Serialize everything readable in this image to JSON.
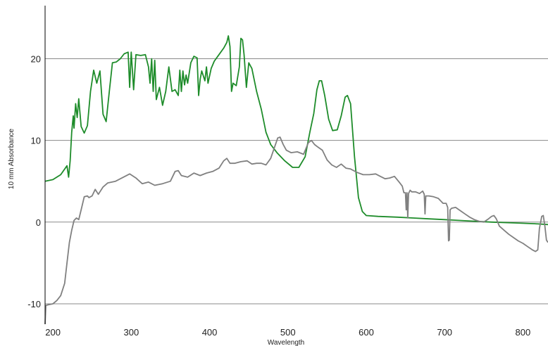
{
  "chart_data": {
    "type": "line",
    "title": "",
    "xlabel": "Wavelength",
    "ylabel": "10 mm Absorbance",
    "xlim": [
      190,
      832
    ],
    "ylim": [
      -12.5,
      26.5
    ],
    "xticks": [
      200,
      300,
      400,
      500,
      600,
      700,
      800
    ],
    "yticks": [
      -10,
      0,
      10,
      20
    ],
    "grid": "horizontal",
    "legend": "none",
    "series": [
      {
        "color": "#1e8c2a",
        "points": [
          [
            190,
            5.0
          ],
          [
            200,
            5.2
          ],
          [
            210,
            5.8
          ],
          [
            218,
            6.9
          ],
          [
            220,
            5.5
          ],
          [
            222,
            7.5
          ],
          [
            224,
            11.0
          ],
          [
            226,
            13.0
          ],
          [
            227,
            11.5
          ],
          [
            229,
            14.5
          ],
          [
            231,
            12.8
          ],
          [
            233,
            15.1
          ],
          [
            236,
            11.7
          ],
          [
            240,
            10.9
          ],
          [
            244,
            11.8
          ],
          [
            248,
            16.0
          ],
          [
            252,
            18.6
          ],
          [
            256,
            17.0
          ],
          [
            260,
            18.5
          ],
          [
            264,
            13.2
          ],
          [
            268,
            12.3
          ],
          [
            272,
            16.0
          ],
          [
            276,
            19.5
          ],
          [
            281,
            19.6
          ],
          [
            286,
            20.0
          ],
          [
            291,
            20.6
          ],
          [
            296,
            20.8
          ],
          [
            298,
            16.5
          ],
          [
            300,
            20.8
          ],
          [
            303,
            16.2
          ],
          [
            306,
            20.5
          ],
          [
            312,
            20.4
          ],
          [
            318,
            20.5
          ],
          [
            322,
            19.0
          ],
          [
            324,
            17.0
          ],
          [
            326,
            20.0
          ],
          [
            328,
            16.0
          ],
          [
            330,
            19.8
          ],
          [
            332,
            15.0
          ],
          [
            336,
            16.5
          ],
          [
            340,
            14.3
          ],
          [
            344,
            16.0
          ],
          [
            348,
            19.0
          ],
          [
            352,
            16.0
          ],
          [
            356,
            16.2
          ],
          [
            360,
            15.5
          ],
          [
            362,
            18.6
          ],
          [
            364,
            16.0
          ],
          [
            366,
            18.5
          ],
          [
            368,
            16.8
          ],
          [
            370,
            18.0
          ],
          [
            372,
            17.0
          ],
          [
            376,
            19.5
          ],
          [
            380,
            20.3
          ],
          [
            384,
            20.1
          ],
          [
            386,
            15.5
          ],
          [
            388,
            17.5
          ],
          [
            390,
            18.5
          ],
          [
            394,
            17.3
          ],
          [
            396,
            19.0
          ],
          [
            398,
            17.0
          ],
          [
            402,
            18.8
          ],
          [
            406,
            19.7
          ],
          [
            412,
            20.5
          ],
          [
            418,
            21.3
          ],
          [
            422,
            22.0
          ],
          [
            424,
            22.8
          ],
          [
            426,
            21.5
          ],
          [
            428,
            16.0
          ],
          [
            430,
            17.0
          ],
          [
            434,
            16.7
          ],
          [
            438,
            19.0
          ],
          [
            440,
            22.5
          ],
          [
            442,
            22.3
          ],
          [
            444,
            20.5
          ],
          [
            447,
            16.5
          ],
          [
            450,
            19.5
          ],
          [
            454,
            18.8
          ],
          [
            460,
            16.0
          ],
          [
            466,
            13.8
          ],
          [
            472,
            11.0
          ],
          [
            478,
            9.5
          ],
          [
            486,
            8.5
          ],
          [
            496,
            7.5
          ],
          [
            506,
            6.7
          ],
          [
            514,
            6.7
          ],
          [
            522,
            8.0
          ],
          [
            528,
            11.0
          ],
          [
            533,
            13.3
          ],
          [
            537,
            16.2
          ],
          [
            540,
            17.3
          ],
          [
            543,
            17.3
          ],
          [
            547,
            15.5
          ],
          [
            552,
            12.6
          ],
          [
            557,
            11.2
          ],
          [
            563,
            11.3
          ],
          [
            568,
            13.0
          ],
          [
            573,
            15.3
          ],
          [
            576,
            15.5
          ],
          [
            580,
            14.5
          ],
          [
            585,
            8.0
          ],
          [
            590,
            3.0
          ],
          [
            595,
            1.3
          ],
          [
            600,
            0.8
          ],
          [
            615,
            0.7
          ],
          [
            640,
            0.6
          ],
          [
            660,
            0.5
          ],
          [
            680,
            0.4
          ],
          [
            700,
            0.3
          ],
          [
            730,
            0.15
          ],
          [
            760,
            0.0
          ],
          [
            790,
            -0.1
          ],
          [
            815,
            -0.2
          ],
          [
            832,
            -0.3
          ]
        ]
      },
      {
        "color": "#808080",
        "points": [
          [
            190,
            -12.5
          ],
          [
            191,
            -10.2
          ],
          [
            195,
            -10.1
          ],
          [
            200,
            -10.0
          ],
          [
            205,
            -9.6
          ],
          [
            210,
            -9.0
          ],
          [
            215,
            -7.5
          ],
          [
            218,
            -5.0
          ],
          [
            221,
            -2.5
          ],
          [
            224,
            -1.0
          ],
          [
            227,
            0.2
          ],
          [
            230,
            0.5
          ],
          [
            233,
            0.3
          ],
          [
            236,
            1.5
          ],
          [
            240,
            3.1
          ],
          [
            244,
            3.2
          ],
          [
            246,
            3.0
          ],
          [
            250,
            3.2
          ],
          [
            254,
            4.0
          ],
          [
            258,
            3.4
          ],
          [
            264,
            4.3
          ],
          [
            270,
            4.8
          ],
          [
            280,
            5.0
          ],
          [
            290,
            5.5
          ],
          [
            298,
            5.9
          ],
          [
            306,
            5.4
          ],
          [
            314,
            4.7
          ],
          [
            322,
            4.9
          ],
          [
            330,
            4.5
          ],
          [
            340,
            4.7
          ],
          [
            350,
            5.0
          ],
          [
            356,
            6.2
          ],
          [
            360,
            6.3
          ],
          [
            364,
            5.7
          ],
          [
            372,
            5.5
          ],
          [
            380,
            6.0
          ],
          [
            388,
            5.7
          ],
          [
            396,
            6.0
          ],
          [
            404,
            6.2
          ],
          [
            412,
            6.6
          ],
          [
            418,
            7.5
          ],
          [
            422,
            7.8
          ],
          [
            426,
            7.2
          ],
          [
            432,
            7.2
          ],
          [
            440,
            7.4
          ],
          [
            448,
            7.5
          ],
          [
            454,
            7.1
          ],
          [
            460,
            7.2
          ],
          [
            466,
            7.2
          ],
          [
            472,
            7.0
          ],
          [
            478,
            7.8
          ],
          [
            483,
            9.2
          ],
          [
            487,
            10.3
          ],
          [
            490,
            10.4
          ],
          [
            494,
            9.5
          ],
          [
            498,
            8.8
          ],
          [
            504,
            8.5
          ],
          [
            512,
            8.6
          ],
          [
            520,
            8.3
          ],
          [
            526,
            9.7
          ],
          [
            530,
            10.0
          ],
          [
            534,
            9.5
          ],
          [
            538,
            9.2
          ],
          [
            544,
            8.8
          ],
          [
            550,
            7.6
          ],
          [
            556,
            7.0
          ],
          [
            562,
            6.7
          ],
          [
            568,
            7.1
          ],
          [
            574,
            6.6
          ],
          [
            580,
            6.5
          ],
          [
            588,
            6.1
          ],
          [
            596,
            5.8
          ],
          [
            604,
            5.8
          ],
          [
            612,
            5.9
          ],
          [
            618,
            5.6
          ],
          [
            624,
            5.3
          ],
          [
            630,
            5.4
          ],
          [
            636,
            5.6
          ],
          [
            642,
            4.9
          ],
          [
            646,
            4.4
          ],
          [
            648,
            3.6
          ],
          [
            650,
            3.6
          ],
          [
            651,
            1.5
          ],
          [
            652,
            3.6
          ],
          [
            653,
            0.5
          ],
          [
            654,
            3.5
          ],
          [
            656,
            3.9
          ],
          [
            658,
            3.7
          ],
          [
            663,
            3.7
          ],
          [
            668,
            3.5
          ],
          [
            672,
            3.8
          ],
          [
            674,
            3.4
          ],
          [
            675,
            1.0
          ],
          [
            676,
            3.2
          ],
          [
            680,
            3.2
          ],
          [
            686,
            3.1
          ],
          [
            692,
            2.9
          ],
          [
            698,
            2.3
          ],
          [
            702,
            2.3
          ],
          [
            704,
            1.8
          ],
          [
            705,
            -2.3
          ],
          [
            706,
            -2.2
          ],
          [
            707,
            1.5
          ],
          [
            709,
            1.7
          ],
          [
            714,
            1.8
          ],
          [
            720,
            1.4
          ],
          [
            726,
            1.0
          ],
          [
            732,
            0.6
          ],
          [
            738,
            0.3
          ],
          [
            744,
            0.1
          ],
          [
            750,
            0.0
          ],
          [
            756,
            0.4
          ],
          [
            760,
            0.7
          ],
          [
            763,
            0.8
          ],
          [
            766,
            0.4
          ],
          [
            770,
            -0.5
          ],
          [
            776,
            -1.0
          ],
          [
            782,
            -1.5
          ],
          [
            788,
            -1.9
          ],
          [
            794,
            -2.3
          ],
          [
            800,
            -2.6
          ],
          [
            806,
            -3.0
          ],
          [
            812,
            -3.4
          ],
          [
            816,
            -3.6
          ],
          [
            819,
            -3.4
          ],
          [
            821,
            -0.8
          ],
          [
            824,
            0.7
          ],
          [
            826,
            0.8
          ],
          [
            828,
            -0.5
          ],
          [
            830,
            -2.2
          ],
          [
            832,
            -2.5
          ]
        ]
      }
    ]
  }
}
